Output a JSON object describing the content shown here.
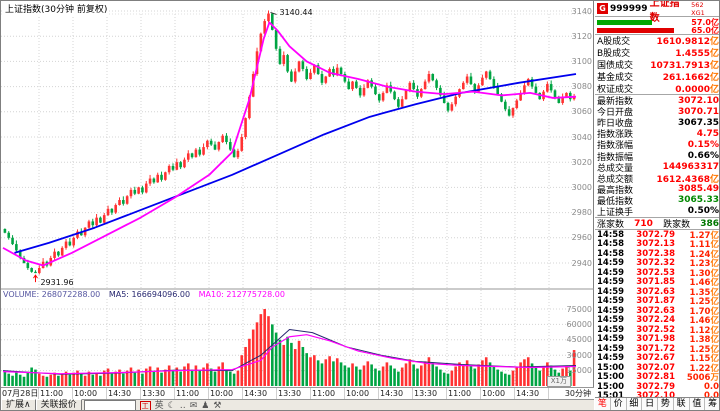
{
  "chart": {
    "title": "上证指数(30分钟 前复权)",
    "period_label": "30分钟",
    "annotations": {
      "high": "3140.44",
      "low": "2931.96"
    },
    "y_labels": [
      "3140",
      "3120",
      "3100",
      "3080",
      "3060",
      "3040",
      "3020",
      "3000",
      "2980",
      "2960",
      "2940"
    ],
    "x_labels": [
      "07月28日",
      "11:00",
      "10:00",
      "14:30",
      "13:30",
      "11:00",
      "10:00",
      "14:30",
      "13:30",
      "11:00",
      "10:00",
      "14:30",
      "13:30",
      "11:00",
      "10:00",
      "14:30"
    ],
    "volume_header": {
      "volume": "VOLUME: 268072288.00",
      "ma5": "MA5: 166694096.00",
      "ma10": "MA10: 212775728.00"
    },
    "vol_y_labels": [
      "75000",
      "60000",
      "45000",
      "30000",
      "15000"
    ],
    "vol_multiplier": "X1万"
  },
  "chart_data": {
    "type": "candlestick+volume",
    "title": "上证指数 30分钟",
    "price_axis": {
      "min": 2928,
      "max": 3148,
      "gridlines": [
        2940,
        2960,
        2980,
        3000,
        3020,
        3040,
        3060,
        3080,
        3100,
        3120,
        3140
      ]
    },
    "volume_axis": {
      "min": 0,
      "max": 80000,
      "unit": "1万",
      "gridlines": [
        15000,
        30000,
        45000,
        60000,
        75000
      ]
    },
    "high_point": {
      "index": 69,
      "value": 3140.44,
      "label": "3140.44"
    },
    "low_point": {
      "index": 8,
      "value": 2931.96,
      "label": "2931.96"
    },
    "closes": [
      2964,
      2960,
      2955,
      2950,
      2944,
      2940,
      2936,
      2933,
      2932,
      2936,
      2941,
      2938,
      2944,
      2949,
      2946,
      2952,
      2957,
      2954,
      2960,
      2965,
      2962,
      2968,
      2973,
      2970,
      2976,
      2972,
      2978,
      2983,
      2980,
      2986,
      2990,
      2987,
      2993,
      2998,
      2995,
      3000,
      2996,
      3003,
      3007,
      3004,
      3010,
      3006,
      3012,
      3017,
      3014,
      3020,
      3016,
      3022,
      3027,
      3024,
      3030,
      3026,
      3032,
      3037,
      3034,
      3030,
      3036,
      3041,
      3036,
      3030,
      3024,
      3029,
      3040,
      3055,
      3072,
      3090,
      3108,
      3122,
      3132,
      3138,
      3125,
      3110,
      3098,
      3105,
      3092,
      3084,
      3092,
      3100,
      3094,
      3086,
      3091,
      3097,
      3090,
      3083,
      3088,
      3094,
      3089,
      3095,
      3090,
      3084,
      3078,
      3084,
      3079,
      3073,
      3079,
      3085,
      3080,
      3074,
      3069,
      3075,
      3081,
      3076,
      3070,
      3064,
      3070,
      3077,
      3083,
      3078,
      3072,
      3078,
      3084,
      3090,
      3085,
      3079,
      3073,
      3067,
      3061,
      3066,
      3072,
      3078,
      3083,
      3088,
      3082,
      3076,
      3081,
      3087,
      3092,
      3086,
      3080,
      3074,
      3068,
      3062,
      3057,
      3063,
      3069,
      3075,
      3081,
      3086,
      3080,
      3075,
      3070,
      3076,
      3082,
      3077,
      3071,
      3067,
      3072,
      3075,
      3070,
      3072.1
    ],
    "volumes": [
      15000,
      12000,
      10000,
      14000,
      11000,
      9000,
      13000,
      18000,
      16000,
      12000,
      10000,
      9000,
      11000,
      13000,
      10000,
      12000,
      14000,
      11000,
      13000,
      15000,
      12000,
      10000,
      14000,
      11000,
      13000,
      10000,
      15000,
      17000,
      12000,
      14000,
      16000,
      12000,
      15000,
      18000,
      13000,
      16000,
      12000,
      17000,
      19000,
      14000,
      18000,
      13000,
      16000,
      20000,
      15000,
      18000,
      14000,
      19000,
      22000,
      16000,
      20000,
      15000,
      18000,
      22000,
      17000,
      14000,
      19000,
      23000,
      16000,
      14000,
      12000,
      15000,
      30000,
      38000,
      46000,
      55000,
      62000,
      70000,
      75000,
      68000,
      60000,
      52000,
      45000,
      40000,
      48000,
      42000,
      36000,
      44000,
      38000,
      32000,
      28000,
      30000,
      25000,
      22000,
      26000,
      29000,
      24000,
      27000,
      23000,
      20000,
      18000,
      22000,
      19000,
      16000,
      20000,
      24000,
      21000,
      17000,
      15000,
      19000,
      23000,
      20000,
      17000,
      14000,
      18000,
      22000,
      26000,
      21000,
      17000,
      20000,
      24000,
      28000,
      23000,
      19000,
      16000,
      13000,
      12000,
      15000,
      19000,
      23000,
      21000,
      25000,
      20000,
      17000,
      21000,
      25000,
      28000,
      23000,
      19000,
      16000,
      14000,
      12000,
      11000,
      15000,
      19000,
      23000,
      26000,
      28000,
      22000,
      18000,
      15000,
      19000,
      23000,
      20000,
      16000,
      13000,
      17000,
      20000,
      15000,
      35000
    ],
    "ma_blue": [
      [
        0.02,
        2948
      ],
      [
        0.08,
        2956
      ],
      [
        0.16,
        2968
      ],
      [
        0.24,
        2982
      ],
      [
        0.32,
        2996
      ],
      [
        0.4,
        3010
      ],
      [
        0.48,
        3026
      ],
      [
        0.56,
        3042
      ],
      [
        0.64,
        3056
      ],
      [
        0.72,
        3066
      ],
      [
        0.8,
        3075
      ],
      [
        0.9,
        3083
      ],
      [
        1.0,
        3090
      ]
    ],
    "ma_magenta": [
      [
        0,
        2952
      ],
      [
        0.04,
        2942
      ],
      [
        0.07,
        2938
      ],
      [
        0.12,
        2948
      ],
      [
        0.18,
        2962
      ],
      [
        0.24,
        2976
      ],
      [
        0.3,
        2992
      ],
      [
        0.36,
        3010
      ],
      [
        0.4,
        3028
      ],
      [
        0.43,
        3070
      ],
      [
        0.455,
        3118
      ],
      [
        0.465,
        3131
      ],
      [
        0.48,
        3124
      ],
      [
        0.5,
        3112
      ],
      [
        0.53,
        3100
      ],
      [
        0.57,
        3091
      ],
      [
        0.62,
        3086
      ],
      [
        0.67,
        3080
      ],
      [
        0.72,
        3076
      ],
      [
        0.77,
        3074
      ],
      [
        0.82,
        3076
      ],
      [
        0.87,
        3073
      ],
      [
        0.92,
        3075
      ],
      [
        0.96,
        3071
      ],
      [
        1.0,
        3072
      ]
    ],
    "vol_ma5": [
      [
        0,
        15000
      ],
      [
        0.1,
        11500
      ],
      [
        0.2,
        12500
      ],
      [
        0.3,
        15500
      ],
      [
        0.4,
        15000
      ],
      [
        0.45,
        30000
      ],
      [
        0.5,
        55000
      ],
      [
        0.54,
        52000
      ],
      [
        0.6,
        38000
      ],
      [
        0.66,
        30000
      ],
      [
        0.72,
        24000
      ],
      [
        0.8,
        21000
      ],
      [
        0.9,
        18500
      ],
      [
        1.0,
        20000
      ]
    ],
    "vol_ma10": [
      [
        0,
        14000
      ],
      [
        0.1,
        12000
      ],
      [
        0.2,
        13000
      ],
      [
        0.3,
        15000
      ],
      [
        0.4,
        16000
      ],
      [
        0.45,
        25000
      ],
      [
        0.47,
        38000
      ],
      [
        0.5,
        48000
      ],
      [
        0.53,
        50000
      ],
      [
        0.57,
        44000
      ],
      [
        0.62,
        34000
      ],
      [
        0.68,
        27000
      ],
      [
        0.74,
        22000
      ],
      [
        0.8,
        20000
      ],
      [
        0.86,
        19000
      ],
      [
        0.92,
        18000
      ],
      [
        1.0,
        19000
      ]
    ],
    "colors": {
      "up": "#ff3232",
      "down": "#00a443",
      "ma_blue": "#0000ee",
      "ma_magenta": "#ff00ff",
      "grid": "#d4d4d4"
    }
  },
  "toolbar": {
    "expand_label": "扩展∧",
    "linked_quote_label": "关联报价",
    "input_value": "",
    "icons": [
      {
        "glyph": "工",
        "name": "chart-mode-icon",
        "red": true
      },
      {
        "glyph": "英",
        "name": "english-icon",
        "red": false
      },
      {
        "glyph": "☾",
        "name": "night-mode-icon",
        "red": false
      },
      {
        "glyph": "‥",
        "name": "more-icon",
        "red": false
      },
      {
        "glyph": "✉",
        "name": "message-icon",
        "red": false
      },
      {
        "glyph": "♟",
        "name": "user-icon",
        "red": false
      },
      {
        "glyph": "⚒",
        "name": "tools-icon",
        "red": false
      }
    ]
  },
  "panel": {
    "header": {
      "logo": "G",
      "code": "999999",
      "name": "上证指数",
      "tag": "562 XG1"
    },
    "bars": {
      "green_value": "57.0亿",
      "green_pct": 62,
      "green_color": "#00a800",
      "red_value": "65.0亿",
      "red_pct": 88,
      "red_color": "#e00000"
    },
    "stats1": [
      {
        "label": "A股成交",
        "value": "1610.9812",
        "unit": "亿",
        "c": "r"
      },
      {
        "label": "B股成交",
        "value": "1.4555",
        "unit": "亿",
        "c": "r"
      },
      {
        "label": "国债成交",
        "value": "10731.7913",
        "unit": "亿",
        "c": "r"
      },
      {
        "label": "基金成交",
        "value": "261.1662",
        "unit": "亿",
        "c": "r"
      },
      {
        "label": "权证成交",
        "value": "0.0000",
        "unit": "亿",
        "c": "r"
      }
    ],
    "stats2": [
      {
        "label": "最新指数",
        "value": "3072.10",
        "unit": "",
        "c": "r"
      },
      {
        "label": "今日开盘",
        "value": "3070.71",
        "unit": "",
        "c": "r"
      },
      {
        "label": "昨日收盘",
        "value": "3067.35",
        "unit": "",
        "c": "k"
      },
      {
        "label": "指数涨跌",
        "value": "4.75",
        "unit": "",
        "c": "r"
      },
      {
        "label": "指数涨幅",
        "value": "0.15%",
        "unit": "",
        "c": "r"
      },
      {
        "label": "指数振幅",
        "value": "0.66%",
        "unit": "",
        "c": "k"
      },
      {
        "label": "总成交量",
        "value": "144963317",
        "unit": "",
        "c": "r"
      },
      {
        "label": "总成交额",
        "value": "1612.4368",
        "unit": "亿",
        "c": "r"
      },
      {
        "label": "最高指数",
        "value": "3085.49",
        "unit": "",
        "c": "r"
      },
      {
        "label": "最低指数",
        "value": "3065.33",
        "unit": "",
        "c": "g"
      },
      {
        "label": "上证换手",
        "value": "0.50%",
        "unit": "",
        "c": "k"
      }
    ],
    "breadth": {
      "up_label": "涨家数",
      "up": "710",
      "down_label": "跌家数",
      "down": "386"
    },
    "ticks": [
      {
        "t": "14:58",
        "p": "3072.79",
        "v": "1.27",
        "u": "亿"
      },
      {
        "t": "14:58",
        "p": "3072.13",
        "v": "1.11",
        "u": "亿"
      },
      {
        "t": "14:58",
        "p": "3072.38",
        "v": "1.24",
        "u": "亿"
      },
      {
        "t": "14:59",
        "p": "3072.32",
        "v": "1.23",
        "u": "亿"
      },
      {
        "t": "14:59",
        "p": "3072.53",
        "v": "1.30",
        "u": "亿"
      },
      {
        "t": "14:59",
        "p": "3071.85",
        "v": "1.46",
        "u": "亿"
      },
      {
        "t": "14:59",
        "p": "3072.63",
        "v": "1.35",
        "u": "亿"
      },
      {
        "t": "14:59",
        "p": "3071.87",
        "v": "1.25",
        "u": "亿"
      },
      {
        "t": "14:59",
        "p": "3072.63",
        "v": "1.70",
        "u": "亿"
      },
      {
        "t": "14:59",
        "p": "3072.24",
        "v": "1.46",
        "u": "亿"
      },
      {
        "t": "14:59",
        "p": "3072.52",
        "v": "1.12",
        "u": "亿"
      },
      {
        "t": "14:59",
        "p": "3071.98",
        "v": "1.38",
        "u": "亿"
      },
      {
        "t": "14:59",
        "p": "3071.72",
        "v": "1.25",
        "u": "亿"
      },
      {
        "t": "14:59",
        "p": "3072.67",
        "v": "1.15",
        "u": "亿"
      },
      {
        "t": "15:00",
        "p": "3072.07",
        "v": "1.22",
        "u": "亿"
      },
      {
        "t": "15:00",
        "p": "3072.81",
        "v": "5006",
        "u": "万"
      },
      {
        "t": "15:00",
        "p": "3072.79",
        "v": "0.0",
        "u": ""
      },
      {
        "t": "15:01",
        "p": "3072.10",
        "v": "0.0",
        "u": ""
      }
    ],
    "tabs": [
      "笔",
      "价",
      "细",
      "日",
      "势",
      "联",
      "值",
      "筹"
    ]
  }
}
